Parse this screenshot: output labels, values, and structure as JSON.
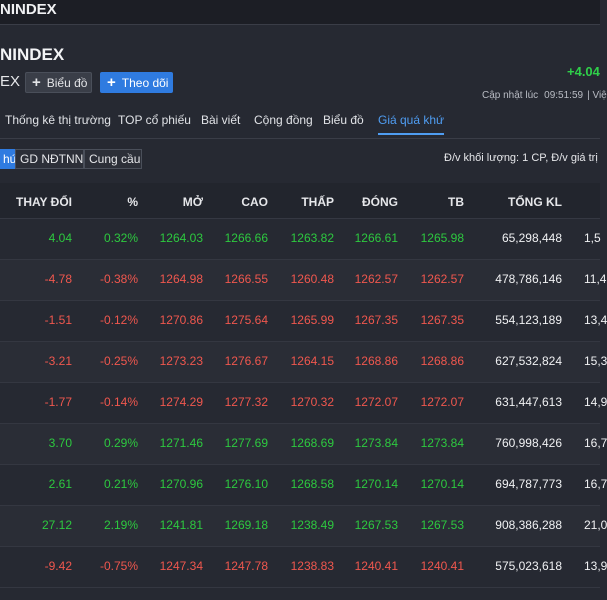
{
  "topbar": {
    "crumb": "NINDEX"
  },
  "header": {
    "title": "NINDEX",
    "code_suffix": "EX",
    "chart_button_label": "Biểu đồ",
    "follow_button_label": "Theo dõi",
    "price_change": "+4.04",
    "update_label": "Cập nhật lúc",
    "update_time": "09:51:59",
    "update_extra": "| Việ"
  },
  "tabs": [
    {
      "label": "Thống kê thị trường",
      "active": false
    },
    {
      "label": "TOP cổ phiếu",
      "active": false
    },
    {
      "label": "Bài viết",
      "active": false
    },
    {
      "label": "Cộng đồng",
      "active": false
    },
    {
      "label": "Biểu đồ",
      "active": false
    },
    {
      "label": "Giá quá khứ",
      "active": true
    }
  ],
  "subtabs": [
    {
      "label": "hứ",
      "active": true
    },
    {
      "label": "GD NĐTNN",
      "active": false
    },
    {
      "label": "Cung cầu",
      "active": false
    }
  ],
  "unit_note": "Đ/v khối lượng: 1 CP, Đ/v giá trị",
  "table": {
    "headers": {
      "change": "THAY ĐỔI",
      "pct": "%",
      "open": "MỞ",
      "high": "CAO",
      "low": "THẤP",
      "close": "ĐÓNG",
      "avg": "TB",
      "vol": "TỔNG KL"
    },
    "rows": [
      {
        "change": "4.04",
        "pct": "0.32%",
        "open": "1264.03",
        "high": "1266.66",
        "low": "1263.82",
        "close": "1266.61",
        "avg": "1265.98",
        "vol": "65,298,448",
        "extra": "1,5",
        "dir": "up"
      },
      {
        "change": "-4.78",
        "pct": "-0.38%",
        "open": "1264.98",
        "high": "1266.55",
        "low": "1260.48",
        "close": "1262.57",
        "avg": "1262.57",
        "vol": "478,786,146",
        "extra": "11,4",
        "dir": "down"
      },
      {
        "change": "-1.51",
        "pct": "-0.12%",
        "open": "1270.86",
        "high": "1275.64",
        "low": "1265.99",
        "close": "1267.35",
        "avg": "1267.35",
        "vol": "554,123,189",
        "extra": "13,4",
        "dir": "down"
      },
      {
        "change": "-3.21",
        "pct": "-0.25%",
        "open": "1273.23",
        "high": "1276.67",
        "low": "1264.15",
        "close": "1268.86",
        "avg": "1268.86",
        "vol": "627,532,824",
        "extra": "15,3",
        "dir": "down"
      },
      {
        "change": "-1.77",
        "pct": "-0.14%",
        "open": "1274.29",
        "high": "1277.32",
        "low": "1270.32",
        "close": "1272.07",
        "avg": "1272.07",
        "vol": "631,447,613",
        "extra": "14,9",
        "dir": "down"
      },
      {
        "change": "3.70",
        "pct": "0.29%",
        "open": "1271.46",
        "high": "1277.69",
        "low": "1268.69",
        "close": "1273.84",
        "avg": "1273.84",
        "vol": "760,998,426",
        "extra": "16,7",
        "dir": "up"
      },
      {
        "change": "2.61",
        "pct": "0.21%",
        "open": "1270.96",
        "high": "1276.10",
        "low": "1268.58",
        "close": "1270.14",
        "avg": "1270.14",
        "vol": "694,787,773",
        "extra": "16,7",
        "dir": "up"
      },
      {
        "change": "27.12",
        "pct": "2.19%",
        "open": "1241.81",
        "high": "1269.18",
        "low": "1238.49",
        "close": "1267.53",
        "avg": "1267.53",
        "vol": "908,386,288",
        "extra": "21,0",
        "dir": "up"
      },
      {
        "change": "-9.42",
        "pct": "-0.75%",
        "open": "1247.34",
        "high": "1247.78",
        "low": "1238.83",
        "close": "1240.41",
        "avg": "1240.41",
        "vol": "575,023,618",
        "extra": "13,9",
        "dir": "down"
      }
    ]
  },
  "colors": {
    "up": "#2dc93f",
    "down": "#f0574e",
    "accent": "#2f7be0"
  }
}
